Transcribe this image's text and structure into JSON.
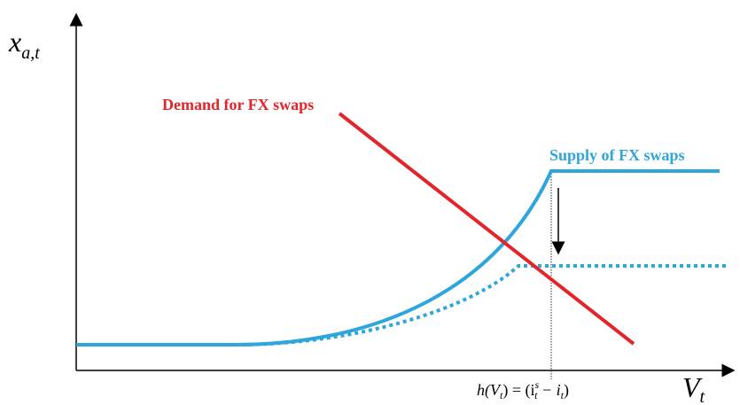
{
  "y_axis_label": {
    "base": "x",
    "sub": "a,t"
  },
  "x_axis_label": {
    "base": "V",
    "sub": "t"
  },
  "demand_label": "Demand for FX swaps",
  "supply_label": "Supply of FX swaps",
  "threshold_label": [
    "h(V",
    "t",
    ") = (i",
    "s",
    "t",
    " − i",
    "t",
    ")"
  ]
}
